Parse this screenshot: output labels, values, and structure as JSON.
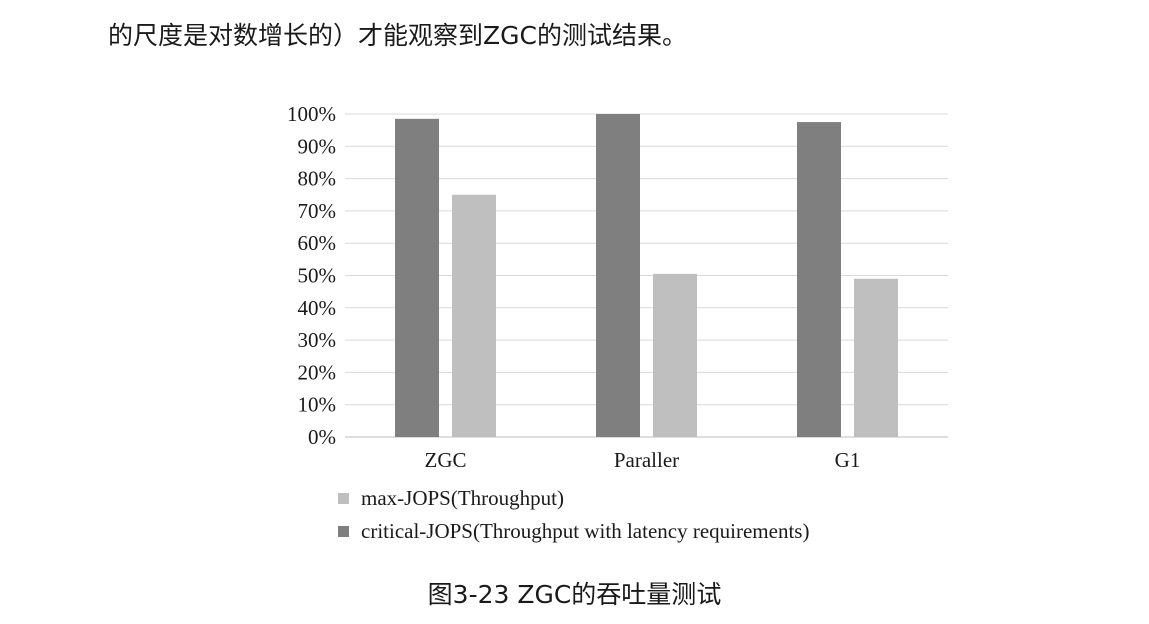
{
  "intro_text": "的尺度是对数增长的）才能观察到ZGC的测试结果。",
  "caption": "图3-23 ZGC的吞吐量测试",
  "chart_data": {
    "type": "bar",
    "title": "",
    "xlabel": "",
    "ylabel": "",
    "categories": [
      "ZGC",
      "Paraller",
      "G1"
    ],
    "ylim": [
      0,
      100
    ],
    "yticks": [
      "0%",
      "10%",
      "20%",
      "30%",
      "40%",
      "50%",
      "60%",
      "70%",
      "80%",
      "90%",
      "100%"
    ],
    "grid": true,
    "legend_position": "bottom",
    "series": [
      {
        "name": "critical-JOPS(Throughput with latency requirements)",
        "color": "#7f7f7f",
        "values": [
          98.5,
          100,
          97.5
        ]
      },
      {
        "name": "max-JOPS(Throughput)",
        "color": "#bfbfbf",
        "values": [
          75,
          50.5,
          49
        ]
      }
    ],
    "legend_order": [
      1,
      0
    ]
  }
}
